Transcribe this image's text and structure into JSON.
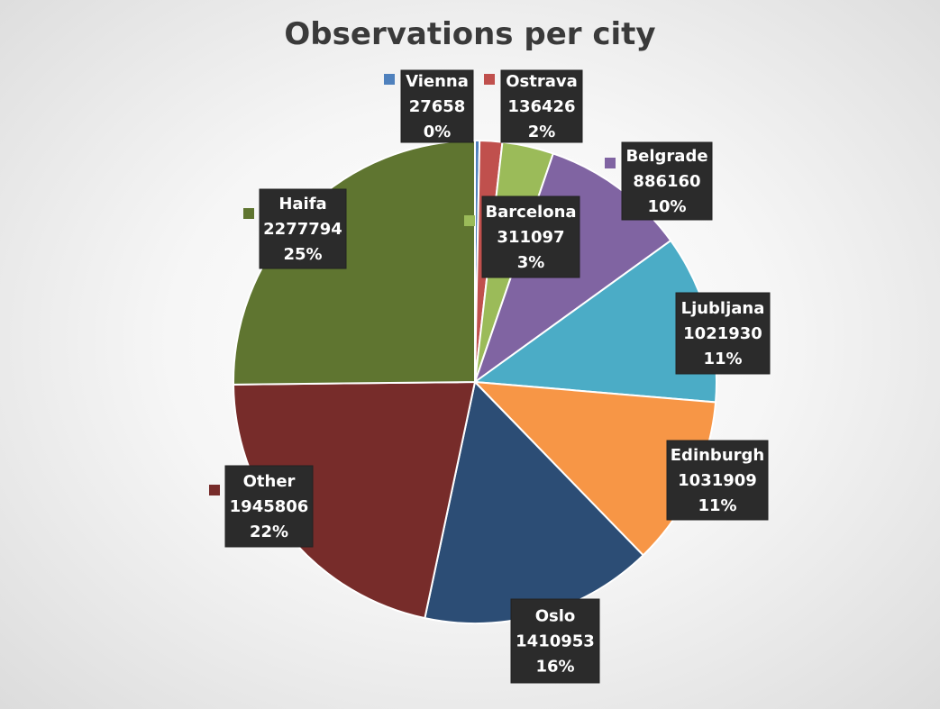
{
  "chart_data": {
    "type": "pie",
    "title": "Observations per city",
    "slices": [
      {
        "label": "Vienna",
        "value": 27658,
        "percent": "0%",
        "color": "#4f81bd"
      },
      {
        "label": "Ostrava",
        "value": 136426,
        "percent": "2%",
        "color": "#c0504d"
      },
      {
        "label": "Barcelona",
        "value": 311097,
        "percent": "3%",
        "color": "#9bbb59"
      },
      {
        "label": "Belgrade",
        "value": 886160,
        "percent": "10%",
        "color": "#8064a2"
      },
      {
        "label": "Ljubljana",
        "value": 1021930,
        "percent": "11%",
        "color": "#4bacc6"
      },
      {
        "label": "Edinburgh",
        "value": 1031909,
        "percent": "11%",
        "color": "#f79646"
      },
      {
        "label": "Oslo",
        "value": 1410953,
        "percent": "16%",
        "color": "#2c4d75"
      },
      {
        "label": "Other",
        "value": 1945806,
        "percent": "22%",
        "color": "#772c2a"
      },
      {
        "label": "Haifa",
        "value": 2277794,
        "percent": "25%",
        "color": "#5f7530"
      }
    ]
  }
}
